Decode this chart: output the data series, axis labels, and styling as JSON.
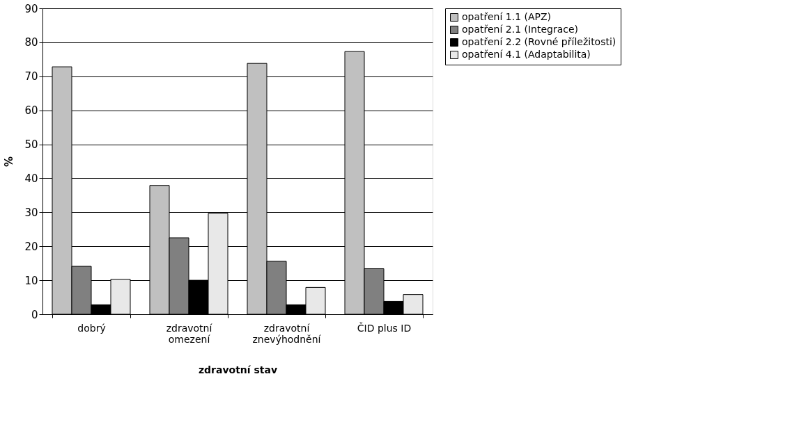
{
  "chart_data": {
    "type": "bar",
    "xlabel": "zdravotní stav",
    "ylabel": "%",
    "categories": [
      "dobrý",
      "zdravotní omezení",
      "zdravotní znevýhodnění",
      "ČID plus ID"
    ],
    "series": [
      {
        "name": "opatření 1.1 (APZ)",
        "color": "#c0c0c0",
        "values": [
          72.8,
          37.9,
          73.8,
          77.3
        ]
      },
      {
        "name": "opatření 2.1 (Integrace)",
        "color": "#808080",
        "values": [
          14.1,
          22.5,
          15.6,
          13.4
        ]
      },
      {
        "name": "opatření 2.2 (Rovné příležitosti)",
        "color": "#000000",
        "values": [
          2.8,
          10,
          2.8,
          3.8
        ]
      },
      {
        "name": "opatření 4.1 (Adaptabilita)",
        "color": "#e8e8e8",
        "values": [
          10.3,
          29.7,
          7.9,
          5.8
        ]
      }
    ],
    "ylim": [
      0,
      90
    ],
    "yticks": [
      0,
      10,
      20,
      30,
      40,
      50,
      60,
      70,
      80,
      90
    ],
    "grid": "y",
    "legend": "right"
  }
}
